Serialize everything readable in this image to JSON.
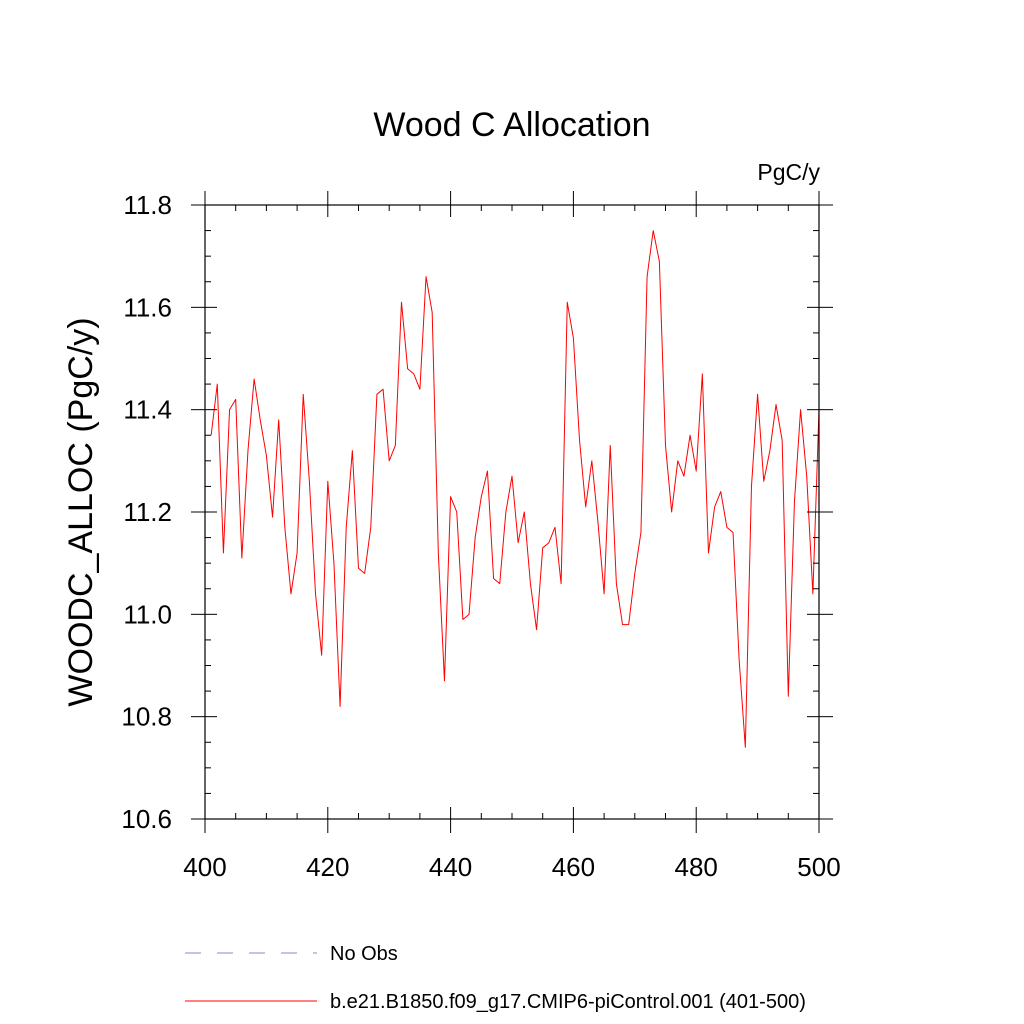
{
  "chart_data": {
    "type": "line",
    "title": "Wood C Allocation",
    "units_label": "PgC/y",
    "xlabel": "",
    "ylabel": "WOODC_ALLOC  (PgC/y)",
    "xlim": [
      400,
      500
    ],
    "ylim": [
      10.6,
      11.8
    ],
    "x_ticks": [
      400,
      420,
      440,
      460,
      480,
      500
    ],
    "x_tick_labels": [
      "400",
      "420",
      "440",
      "460",
      "480",
      "500"
    ],
    "y_ticks": [
      10.6,
      10.8,
      11.0,
      11.2,
      11.4,
      11.6,
      11.8
    ],
    "y_tick_labels": [
      "10.6",
      "10.8",
      "11.0",
      "11.2",
      "11.4",
      "11.6",
      "11.8"
    ],
    "series": [
      {
        "name": "b.e21.B1850.f09_g17.CMIP6-piControl.001 (401-500)",
        "color": "#ff0000",
        "dash": "solid",
        "x": [
          401,
          402,
          403,
          404,
          405,
          406,
          407,
          408,
          409,
          410,
          411,
          412,
          413,
          414,
          415,
          416,
          417,
          418,
          419,
          420,
          421,
          422,
          423,
          424,
          425,
          426,
          427,
          428,
          429,
          430,
          431,
          432,
          433,
          434,
          435,
          436,
          437,
          438,
          439,
          440,
          441,
          442,
          443,
          444,
          445,
          446,
          447,
          448,
          449,
          450,
          451,
          452,
          453,
          454,
          455,
          456,
          457,
          458,
          459,
          460,
          461,
          462,
          463,
          464,
          465,
          466,
          467,
          468,
          469,
          470,
          471,
          472,
          473,
          474,
          475,
          476,
          477,
          478,
          479,
          480,
          481,
          482,
          483,
          484,
          485,
          486,
          487,
          488,
          489,
          490,
          491,
          492,
          493,
          494,
          495,
          496,
          497,
          498,
          499,
          500
        ],
        "values": [
          11.35,
          11.45,
          11.12,
          11.4,
          11.42,
          11.11,
          11.32,
          11.46,
          11.38,
          11.31,
          11.19,
          11.38,
          11.17,
          11.04,
          11.12,
          11.43,
          11.26,
          11.04,
          10.92,
          11.26,
          11.1,
          10.82,
          11.17,
          11.32,
          11.09,
          11.08,
          11.17,
          11.43,
          11.44,
          11.3,
          11.33,
          11.61,
          11.48,
          11.47,
          11.44,
          11.66,
          11.59,
          11.12,
          10.87,
          11.23,
          11.2,
          10.99,
          11.0,
          11.15,
          11.23,
          11.28,
          11.07,
          11.06,
          11.2,
          11.27,
          11.14,
          11.2,
          11.06,
          10.97,
          11.13,
          11.14,
          11.17,
          11.06,
          11.61,
          11.54,
          11.34,
          11.21,
          11.3,
          11.18,
          11.04,
          11.33,
          11.06,
          10.98,
          10.98,
          11.08,
          11.16,
          11.66,
          11.75,
          11.69,
          11.33,
          11.2,
          11.3,
          11.27,
          11.35,
          11.28,
          11.47,
          11.12,
          11.21,
          11.24,
          11.17,
          11.16,
          10.91,
          10.74,
          11.25,
          11.43,
          11.26,
          11.32,
          11.41,
          11.34,
          10.84,
          11.22,
          11.4,
          11.27,
          11.04,
          11.4
        ]
      },
      {
        "name": "No Obs",
        "color": "#8888cc",
        "dash": "dashed",
        "x": [],
        "values": []
      }
    ],
    "legend_position": "bottom-left"
  }
}
